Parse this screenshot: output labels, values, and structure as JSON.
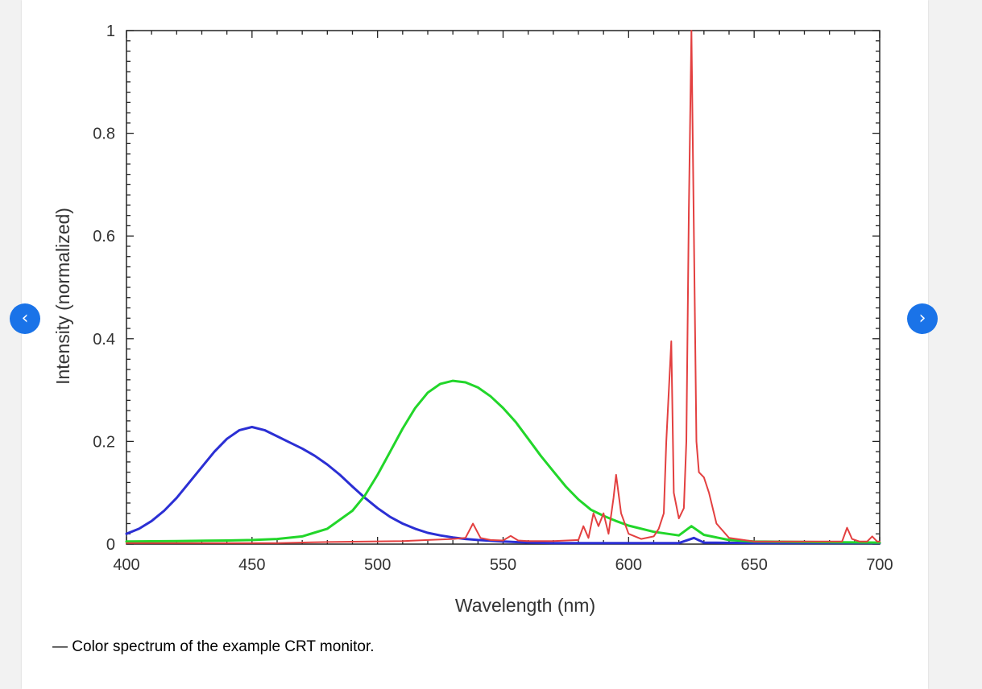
{
  "caption": "— Color spectrum of the example CRT monitor.",
  "nav": {
    "prev_icon": "chevron-left-icon",
    "next_icon": "chevron-right-icon",
    "prev_glyph": "‹",
    "next_glyph": "›"
  },
  "chart_data": {
    "type": "line",
    "title": "",
    "xlabel": "Wavelength (nm)",
    "ylabel": "Intensity (normalized)",
    "xlim": [
      400,
      700
    ],
    "ylim": [
      0,
      1
    ],
    "xticks": [
      400,
      450,
      500,
      550,
      600,
      650,
      700
    ],
    "xtick_labels": [
      "400",
      "450",
      "500",
      "550",
      "600",
      "650",
      "700"
    ],
    "yticks": [
      0,
      0.2,
      0.4,
      0.6,
      0.8,
      1
    ],
    "ytick_labels": [
      "0",
      "0.2",
      "0.4",
      "0.6",
      "0.8",
      "1"
    ],
    "grid": false,
    "series": [
      {
        "color": "#2b2fd4",
        "x": [
          400,
          405,
          410,
          415,
          420,
          425,
          430,
          435,
          440,
          445,
          450,
          455,
          460,
          465,
          470,
          475,
          480,
          485,
          490,
          495,
          500,
          505,
          510,
          515,
          520,
          525,
          530,
          535,
          540,
          550,
          560,
          570,
          580,
          600,
          620,
          626,
          630,
          650,
          700
        ],
        "y": [
          0.02,
          0.03,
          0.045,
          0.065,
          0.09,
          0.12,
          0.15,
          0.18,
          0.205,
          0.222,
          0.228,
          0.222,
          0.21,
          0.198,
          0.186,
          0.172,
          0.155,
          0.135,
          0.112,
          0.09,
          0.07,
          0.053,
          0.04,
          0.03,
          0.022,
          0.017,
          0.013,
          0.01,
          0.008,
          0.005,
          0.003,
          0.002,
          0.002,
          0.002,
          0.002,
          0.012,
          0.003,
          0.002,
          0.002
        ]
      },
      {
        "color": "#22d62a",
        "x": [
          400,
          420,
          440,
          450,
          460,
          470,
          480,
          490,
          495,
          500,
          505,
          510,
          515,
          520,
          525,
          530,
          535,
          540,
          545,
          550,
          555,
          560,
          565,
          570,
          575,
          580,
          585,
          590,
          595,
          600,
          610,
          620,
          625,
          630,
          640,
          650,
          700
        ],
        "y": [
          0.005,
          0.006,
          0.007,
          0.008,
          0.01,
          0.015,
          0.03,
          0.065,
          0.095,
          0.135,
          0.18,
          0.225,
          0.265,
          0.295,
          0.312,
          0.318,
          0.315,
          0.305,
          0.288,
          0.265,
          0.238,
          0.205,
          0.172,
          0.142,
          0.112,
          0.087,
          0.067,
          0.055,
          0.045,
          0.036,
          0.024,
          0.017,
          0.035,
          0.018,
          0.008,
          0.005,
          0.003
        ]
      },
      {
        "color": "#e34040",
        "x": [
          400,
          460,
          480,
          510,
          520,
          530,
          535,
          538,
          541,
          545,
          550,
          553,
          556,
          560,
          570,
          580,
          582,
          584,
          586,
          588,
          590,
          592,
          594,
          595,
          597,
          600,
          605,
          610,
          612,
          614,
          615,
          617,
          618,
          620,
          622,
          623,
          624,
          625,
          626,
          627,
          628,
          630,
          632,
          635,
          640,
          650,
          685,
          687,
          689,
          692,
          695,
          697,
          699,
          700
        ],
        "y": [
          0.002,
          0.002,
          0.004,
          0.006,
          0.008,
          0.01,
          0.012,
          0.04,
          0.012,
          0.008,
          0.007,
          0.016,
          0.007,
          0.006,
          0.006,
          0.008,
          0.035,
          0.012,
          0.06,
          0.035,
          0.06,
          0.02,
          0.09,
          0.135,
          0.06,
          0.02,
          0.01,
          0.015,
          0.03,
          0.06,
          0.2,
          0.395,
          0.1,
          0.05,
          0.07,
          0.2,
          0.65,
          1.0,
          0.6,
          0.2,
          0.14,
          0.13,
          0.1,
          0.04,
          0.012,
          0.005,
          0.005,
          0.032,
          0.01,
          0.005,
          0.005,
          0.015,
          0.005,
          0.005
        ]
      }
    ]
  }
}
